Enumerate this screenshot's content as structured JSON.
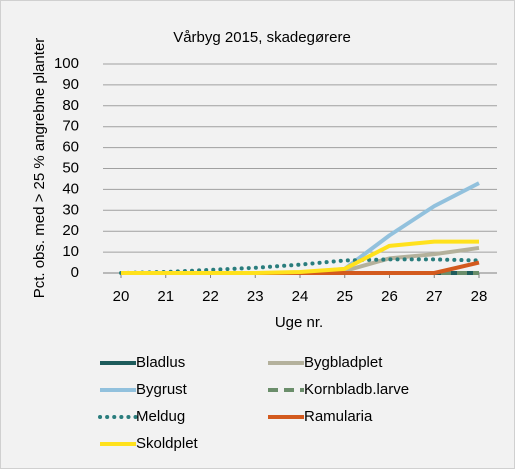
{
  "chart_data": {
    "type": "line",
    "title": "Vårbyg 2015, skadegørere",
    "x_label": "Uge nr.",
    "y_label": "Pct. obs. med > 25 % angrebne planter",
    "x": [
      20,
      21,
      22,
      23,
      24,
      25,
      26,
      27,
      28
    ],
    "xlim": [
      20,
      28
    ],
    "xticks": [
      20,
      21,
      22,
      23,
      24,
      25,
      26,
      27,
      28
    ],
    "ylim": [
      0,
      100
    ],
    "yticks": [
      0,
      10,
      20,
      30,
      40,
      50,
      60,
      70,
      80,
      90,
      100
    ],
    "grid": true,
    "legend": "bottom",
    "series": [
      {
        "name": "Bladlus",
        "color": "#1e5c5c",
        "style": "solid",
        "values": [
          0,
          0,
          0,
          0,
          0,
          0,
          0,
          0,
          0
        ]
      },
      {
        "name": "Bygbladplet",
        "color": "#b4b19c",
        "style": "solid",
        "values": [
          0,
          0,
          0,
          0,
          0,
          1,
          7,
          9,
          12
        ]
      },
      {
        "name": "Bygrust",
        "color": "#92c1dd",
        "style": "solid",
        "values": [
          0,
          0,
          0,
          0,
          0,
          2,
          18,
          32,
          43
        ]
      },
      {
        "name": "Kornbladb.larve",
        "color": "#6b8e6b",
        "style": "dash",
        "values": [
          0,
          0,
          0,
          0,
          0,
          0,
          0,
          0,
          0
        ]
      },
      {
        "name": "Meldug",
        "color": "#2a7d7d",
        "style": "dot",
        "values": [
          0,
          0.5,
          1.5,
          2.5,
          4,
          6,
          6.5,
          6.5,
          6
        ]
      },
      {
        "name": "Ramularia",
        "color": "#d35a1e",
        "style": "solid",
        "values": [
          0,
          0,
          0,
          0,
          0,
          0,
          0,
          0,
          5
        ]
      },
      {
        "name": "Skoldplet",
        "color": "#ffe11c",
        "style": "solid",
        "values": [
          0,
          0,
          0,
          0,
          0.5,
          2,
          13,
          15,
          15
        ]
      }
    ]
  }
}
